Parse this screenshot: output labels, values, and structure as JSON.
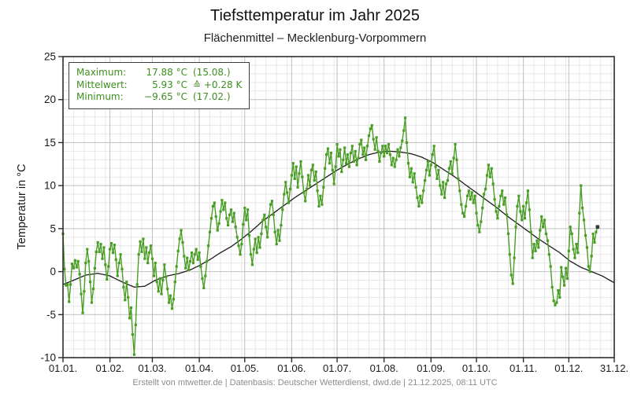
{
  "header": {
    "title": "Tiefsttemperatur im Jahr 2025",
    "subtitle": "Flächenmittel – Mecklenburg-Vorpommern"
  },
  "footer": {
    "text": "Erstellt von mtwetter.de | Datenbasis: Deutscher Wetterdienst, dwd.de | 21.12.2025, 08:11 UTC"
  },
  "legend": {
    "rows": [
      {
        "label": "Maximum:",
        "value": "17.88 °C",
        "extra": "(15.08.)"
      },
      {
        "label": "Mittelwert:",
        "value": "5.93 °C",
        "extra": "≙ +0.28 K"
      },
      {
        "label": "Minimum:",
        "value": "−9.65 °C",
        "extra": "(17.02.)"
      }
    ],
    "text_color": "#3d8e1d"
  },
  "colors": {
    "series_green": "#4a9e25",
    "mean_line": "#1c1c1c",
    "grid_minor": "#e7e7e7",
    "grid_major": "#bfbfbf",
    "axis": "#2c2c2c",
    "tick_text": "#1a1a1a",
    "footer_text": "#8c8c8c",
    "last_marker": "#3c3c3c"
  },
  "chart_data": {
    "type": "line",
    "title": "Tiefsttemperatur im Jahr 2025",
    "subtitle": "Flächenmittel – Mecklenburg-Vorpommern",
    "xlabel": "",
    "ylabel": "Temperatur in °C",
    "ylim": [
      -10,
      25
    ],
    "yticks": [
      25,
      20,
      15,
      10,
      5,
      0,
      -5,
      -10
    ],
    "days_total": 365,
    "xtick_days": [
      1,
      32,
      60,
      91,
      121,
      152,
      182,
      213,
      244,
      274,
      305,
      335,
      365
    ],
    "xtick_labels": [
      "01.01.",
      "01.02.",
      "01.03.",
      "01.04.",
      "01.05.",
      "01.06.",
      "01.07.",
      "01.08.",
      "01.09.",
      "01.10.",
      "01.11.",
      "01.12.",
      "31.12."
    ],
    "grid": {
      "minor_step_y": 1,
      "major_step_y": 5,
      "weekly_minor_x": true
    },
    "legend_position": "top-left",
    "stats": {
      "maximum_c": 17.88,
      "maximum_date": "15.08.",
      "mean_c": 5.93,
      "anomaly_k": "+0.28",
      "minimum_c": -9.65,
      "minimum_date": "17.02."
    },
    "series": [
      {
        "name": "Tiefsttemperatur täglich 2025",
        "color": "#4a9e25",
        "start_day": 1,
        "last_point_highlighted": true,
        "values": [
          4.4,
          0.3,
          -1.6,
          -1.5,
          -3.5,
          -1.5,
          0.9,
          0.4,
          1.3,
          0.5,
          1.2,
          -0.3,
          -2.6,
          -4.8,
          -2.3,
          1.0,
          2.6,
          1.2,
          -1.2,
          -3.6,
          -2.0,
          0.4,
          2.3,
          3.4,
          2.3,
          3.2,
          1.5,
          2.8,
          0.8,
          -0.9,
          0.6,
          2.6,
          3.3,
          2.2,
          3.1,
          1.4,
          -0.5,
          1.0,
          2.0,
          0.3,
          -1.8,
          -3.3,
          -1.2,
          -3.0,
          -5.4,
          -4.2,
          -7.3,
          -9.65,
          -6.2,
          -1.5,
          2.0,
          3.5,
          2.3,
          3.8,
          1.5,
          2.8,
          1.0,
          2.2,
          3.0,
          1.5,
          -0.5,
          1.0,
          -1.2,
          -2.3,
          -0.8,
          -2.6,
          -1.0,
          0.8,
          -0.6,
          -2.0,
          -3.6,
          -2.8,
          -4.3,
          -3.2,
          -1.2,
          0.6,
          2.4,
          3.8,
          4.8,
          3.4,
          1.8,
          0.4,
          1.6,
          0.2,
          1.2,
          2.2,
          1.0,
          2.0,
          2.6,
          1.4,
          2.2,
          0.6,
          -0.8,
          -1.9,
          -0.5,
          1.2,
          3.0,
          4.6,
          6.2,
          7.6,
          8.0,
          6.4,
          4.8,
          5.6,
          7.0,
          8.3,
          7.2,
          8.0,
          6.2,
          5.4,
          6.6,
          7.2,
          5.8,
          6.8,
          5.2,
          4.0,
          3.0,
          2.0,
          3.2,
          5.5,
          7.4,
          6.0,
          7.2,
          4.2,
          2.0,
          0.8,
          2.6,
          3.8,
          2.2,
          4.0,
          2.8,
          4.4,
          6.0,
          6.6,
          5.2,
          4.0,
          6.4,
          7.8,
          8.2,
          6.6,
          4.6,
          3.2,
          4.8,
          3.6,
          5.4,
          7.2,
          9.0,
          10.4,
          9.2,
          8.0,
          9.6,
          11.2,
          12.6,
          10.8,
          12.2,
          9.8,
          11.4,
          12.8,
          11.0,
          9.2,
          8.2,
          9.6,
          11.2,
          10.0,
          11.8,
          12.4,
          10.6,
          11.6,
          9.4,
          7.6,
          8.8,
          7.8,
          9.8,
          12.0,
          13.6,
          14.3,
          12.6,
          13.8,
          11.8,
          10.2,
          12.2,
          14.8,
          13.4,
          14.2,
          11.6,
          13.0,
          14.4,
          12.6,
          13.6,
          12.2,
          13.8,
          14.6,
          12.8,
          14.0,
          12.4,
          13.2,
          14.8,
          15.3,
          13.6,
          14.4,
          13.0,
          14.6,
          15.8,
          16.6,
          17.0,
          15.4,
          14.2,
          15.6,
          14.0,
          12.8,
          13.8,
          14.6,
          13.4,
          14.6,
          13.8,
          14.8,
          13.6,
          12.4,
          13.2,
          12.2,
          13.0,
          14.2,
          13.4,
          14.4,
          15.2,
          16.4,
          17.88,
          15.0,
          12.6,
          11.0,
          12.0,
          10.4,
          11.4,
          9.8,
          8.6,
          7.6,
          8.8,
          8.0,
          9.4,
          10.6,
          11.8,
          12.8,
          11.2,
          12.4,
          13.6,
          14.6,
          12.2,
          10.8,
          11.8,
          10.0,
          9.0,
          10.4,
          8.6,
          10.2,
          10.6,
          12.0,
          12.8,
          11.4,
          13.2,
          14.8,
          13.0,
          10.8,
          9.4,
          7.8,
          6.8,
          6.4,
          7.6,
          8.8,
          9.4,
          8.4,
          9.2,
          8.0,
          8.8,
          6.8,
          5.4,
          4.6,
          5.8,
          7.4,
          9.0,
          9.6,
          11.2,
          12.4,
          11.0,
          12.0,
          10.2,
          8.4,
          7.0,
          6.2,
          7.6,
          8.8,
          9.4,
          7.8,
          8.6,
          6.6,
          4.4,
          2.0,
          -0.4,
          -1.4,
          1.6,
          5.2,
          7.6,
          8.8,
          7.0,
          6.0,
          7.6,
          6.2,
          8.0,
          9.4,
          7.2,
          4.6,
          1.6,
          3.2,
          2.4,
          3.6,
          2.8,
          4.8,
          6.4,
          5.2,
          6.0,
          4.4,
          3.6,
          2.0,
          0.6,
          -1.8,
          -3.4,
          -3.9,
          -3.6,
          -2.2,
          -3.0,
          0.5,
          -0.6,
          -1.6,
          0.4,
          -0.8,
          2.4,
          5.2,
          4.4,
          2.6,
          1.6,
          3.2,
          2.2,
          6.8,
          10.0,
          7.4,
          6.0,
          4.2,
          2.8,
          0.6,
          0.0,
          1.8,
          4.4,
          3.4,
          4.6,
          5.2
        ]
      },
      {
        "name": "Vergleichsmittel (geglättet)",
        "color": "#1c1c1c",
        "keypoints": [
          [
            1,
            -1.5
          ],
          [
            8,
            -1.0
          ],
          [
            16,
            -0.4
          ],
          [
            24,
            -0.2
          ],
          [
            32,
            -0.5
          ],
          [
            40,
            -1.2
          ],
          [
            48,
            -1.8
          ],
          [
            55,
            -1.7
          ],
          [
            62,
            -1.0
          ],
          [
            70,
            -0.5
          ],
          [
            78,
            -0.2
          ],
          [
            85,
            0.2
          ],
          [
            91,
            0.7
          ],
          [
            98,
            1.4
          ],
          [
            105,
            2.2
          ],
          [
            112,
            2.9
          ],
          [
            119,
            3.8
          ],
          [
            126,
            4.8
          ],
          [
            133,
            5.9
          ],
          [
            140,
            6.8
          ],
          [
            147,
            7.7
          ],
          [
            154,
            8.6
          ],
          [
            161,
            9.4
          ],
          [
            168,
            10.2
          ],
          [
            175,
            11.0
          ],
          [
            182,
            11.8
          ],
          [
            189,
            12.5
          ],
          [
            196,
            13.1
          ],
          [
            203,
            13.6
          ],
          [
            210,
            13.9
          ],
          [
            217,
            14.0
          ],
          [
            224,
            13.9
          ],
          [
            231,
            13.7
          ],
          [
            238,
            13.3
          ],
          [
            245,
            12.7
          ],
          [
            252,
            11.9
          ],
          [
            259,
            11.1
          ],
          [
            266,
            10.2
          ],
          [
            273,
            9.3
          ],
          [
            280,
            8.4
          ],
          [
            287,
            7.5
          ],
          [
            294,
            6.5
          ],
          [
            301,
            5.6
          ],
          [
            308,
            4.7
          ],
          [
            315,
            3.8
          ],
          [
            322,
            3.0
          ],
          [
            329,
            2.2
          ],
          [
            336,
            1.2
          ],
          [
            343,
            0.5
          ],
          [
            350,
            0.0
          ],
          [
            357,
            -0.5
          ],
          [
            365,
            -1.3
          ]
        ]
      }
    ]
  }
}
